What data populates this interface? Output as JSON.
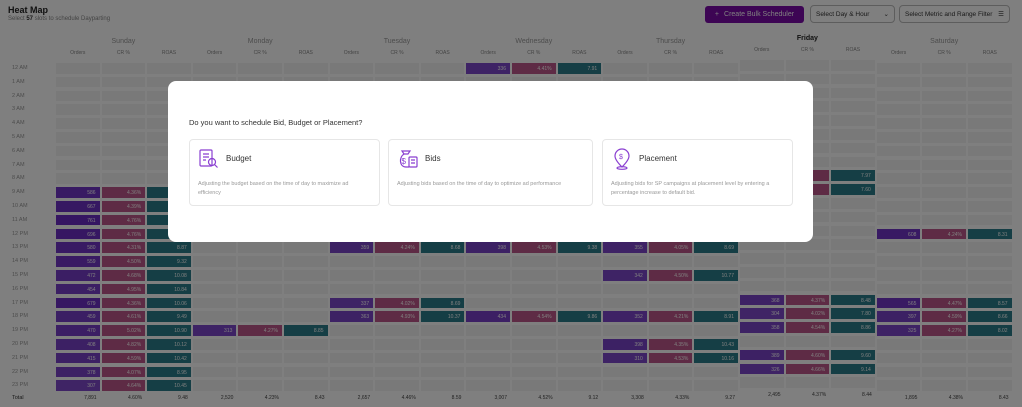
{
  "header": {
    "title": "Heat Map",
    "subtitle_pre": "Select ",
    "subtitle_count": "57",
    "subtitle_post": " slots to schedule Dayparting",
    "create_label": "Create Bulk Scheduler",
    "day_hour_select": "Select Day & Hour",
    "metric_filter": "Select Metric and Range Filter"
  },
  "days": [
    "Sunday",
    "Monday",
    "Tuesday",
    "Wednesday",
    "Thursday",
    "Friday",
    "Saturday"
  ],
  "active_day": "Friday",
  "metrics": [
    "Orders",
    "CR %",
    "ROAS"
  ],
  "hours": [
    "12 AM",
    "1 AM",
    "2 AM",
    "3 AM",
    "4 AM",
    "5 AM",
    "6 AM",
    "7 AM",
    "8 AM",
    "9 AM",
    "10 AM",
    "11 AM",
    "12 PM",
    "13 PM",
    "14 PM",
    "15 PM",
    "16 PM",
    "17 PM",
    "18 PM",
    "19 PM",
    "20 PM",
    "21 PM",
    "22 PM",
    "23 PM"
  ],
  "total_label": "Total",
  "colors": {
    "orders": "#6a2bc4",
    "cr": "#b8477f",
    "roas": "#16707f",
    "brand": "#7a0aa8"
  },
  "cells": [
    {
      "d": 3,
      "h": 0,
      "v": [
        "336",
        "4.41%",
        "7.91"
      ]
    },
    {
      "d": 5,
      "h": 8,
      "v": [
        "",
        "",
        "7.97"
      ]
    },
    {
      "d": 5,
      "h": 9,
      "v": [
        "",
        "",
        "7.60"
      ]
    },
    {
      "d": 0,
      "h": 9,
      "v": [
        "586",
        "4.36%",
        ""
      ]
    },
    {
      "d": 0,
      "h": 10,
      "v": [
        "667",
        "4.39%",
        ""
      ]
    },
    {
      "d": 0,
      "h": 11,
      "v": [
        "761",
        "4.76%",
        ""
      ]
    },
    {
      "d": 0,
      "h": 12,
      "v": [
        "696",
        "4.76%",
        ""
      ]
    },
    {
      "d": 0,
      "h": 13,
      "v": [
        "580",
        "4.31%",
        "8.87"
      ]
    },
    {
      "d": 0,
      "h": 14,
      "v": [
        "559",
        "4.50%",
        "9.32"
      ]
    },
    {
      "d": 0,
      "h": 15,
      "v": [
        "472",
        "4.68%",
        "10.08"
      ]
    },
    {
      "d": 0,
      "h": 16,
      "v": [
        "454",
        "4.95%",
        "10.84"
      ]
    },
    {
      "d": 0,
      "h": 17,
      "v": [
        "679",
        "4.36%",
        "10.06"
      ]
    },
    {
      "d": 0,
      "h": 18,
      "v": [
        "459",
        "4.61%",
        "9.49"
      ]
    },
    {
      "d": 0,
      "h": 19,
      "v": [
        "470",
        "5.02%",
        "10.90"
      ]
    },
    {
      "d": 0,
      "h": 20,
      "v": [
        "408",
        "4.82%",
        "10.12"
      ]
    },
    {
      "d": 0,
      "h": 21,
      "v": [
        "415",
        "4.59%",
        "10.42"
      ]
    },
    {
      "d": 0,
      "h": 22,
      "v": [
        "378",
        "4.07%",
        "8.95"
      ]
    },
    {
      "d": 0,
      "h": 23,
      "v": [
        "307",
        "4.64%",
        "10.45"
      ]
    },
    {
      "d": 1,
      "h": 19,
      "v": [
        "313",
        "4.27%",
        "8.85"
      ]
    },
    {
      "d": 2,
      "h": 13,
      "v": [
        "359",
        "4.24%",
        "8.68"
      ]
    },
    {
      "d": 2,
      "h": 17,
      "v": [
        "337",
        "4.02%",
        "8.69"
      ]
    },
    {
      "d": 2,
      "h": 18,
      "v": [
        "363",
        "4.93%",
        "10.37"
      ]
    },
    {
      "d": 3,
      "h": 13,
      "v": [
        "398",
        "4.53%",
        "9.38"
      ]
    },
    {
      "d": 3,
      "h": 18,
      "v": [
        "434",
        "4.54%",
        "9.86"
      ]
    },
    {
      "d": 4,
      "h": 13,
      "v": [
        "355",
        "4.05%",
        "8.69"
      ]
    },
    {
      "d": 4,
      "h": 15,
      "v": [
        "342",
        "4.50%",
        "10.77"
      ]
    },
    {
      "d": 4,
      "h": 18,
      "v": [
        "352",
        "4.21%",
        "8.91"
      ]
    },
    {
      "d": 4,
      "h": 20,
      "v": [
        "398",
        "4.35%",
        "10.43"
      ]
    },
    {
      "d": 4,
      "h": 21,
      "v": [
        "310",
        "4.53%",
        "10.16"
      ]
    },
    {
      "d": 5,
      "h": 17,
      "v": [
        "368",
        "4.37%",
        "8.48"
      ]
    },
    {
      "d": 5,
      "h": 18,
      "v": [
        "304",
        "4.02%",
        "7.80"
      ]
    },
    {
      "d": 5,
      "h": 19,
      "v": [
        "358",
        "4.54%",
        "8.86"
      ]
    },
    {
      "d": 5,
      "h": 21,
      "v": [
        "389",
        "4.60%",
        "9.60"
      ]
    },
    {
      "d": 5,
      "h": 22,
      "v": [
        "326",
        "4.66%",
        "9.14"
      ]
    },
    {
      "d": 6,
      "h": 12,
      "v": [
        "608",
        "4.24%",
        "8.31"
      ]
    },
    {
      "d": 6,
      "h": 17,
      "v": [
        "565",
        "4.47%",
        "8.57"
      ]
    },
    {
      "d": 6,
      "h": 18,
      "v": [
        "397",
        "4.59%",
        "8.66"
      ]
    },
    {
      "d": 6,
      "h": 19,
      "v": [
        "325",
        "4.27%",
        "8.02"
      ]
    }
  ],
  "totals": [
    [
      "7,891",
      "4.60%",
      "9.48"
    ],
    [
      "2,520",
      "4.23%",
      "8.43"
    ],
    [
      "2,657",
      "4.46%",
      "8.59"
    ],
    [
      "3,007",
      "4.52%",
      "9.12"
    ],
    [
      "3,308",
      "4.33%",
      "9.27"
    ],
    [
      "2,495",
      "4.37%",
      "8.44"
    ],
    [
      "1,895",
      "4.38%",
      "8.43"
    ]
  ],
  "modal": {
    "question": "Do you want to schedule Bid, Budget or Placement?",
    "options": [
      {
        "name": "Budget",
        "desc": "Adjusting the budget based on the time of day to maximize ad efficiency"
      },
      {
        "name": "Bids",
        "desc": "Adjusting bids based on the time of day to optimize ad performance"
      },
      {
        "name": "Placement",
        "desc": "Adjusting bids for SP campaigns at placement level by entering a percentage increase to default bid."
      }
    ]
  }
}
